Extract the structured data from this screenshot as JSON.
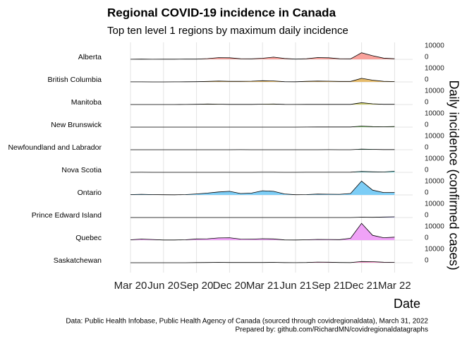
{
  "chart_data": {
    "type": "ridgeline",
    "title": "Regional COVID-19 incidence in Canada",
    "subtitle": "Top ten level 1 regions by maximum daily incidence",
    "x_label": "Date",
    "y_label": "Daily incidence (confirmed cases)",
    "caption": [
      "Data: Public Health Infobase, Public Health Agency of Canada (sourced through covidregionaldata), March 31, 2022",
      "Prepared by: github.com/RichardMN/covidregionaldatagraphs"
    ],
    "x": [
      "2020-03",
      "2020-04",
      "2020-05",
      "2020-06",
      "2020-07",
      "2020-08",
      "2020-09",
      "2020-10",
      "2020-11",
      "2020-12",
      "2021-01",
      "2021-02",
      "2021-03",
      "2021-04",
      "2021-05",
      "2021-06",
      "2021-07",
      "2021-08",
      "2021-09",
      "2021-10",
      "2021-11",
      "2021-12",
      "2022-01",
      "2022-02",
      "2022-03"
    ],
    "xlim": [
      "2020-03",
      "2022-04"
    ],
    "xticks": [
      {
        "value": "2020-03",
        "label": "Mar 20"
      },
      {
        "value": "2020-06",
        "label": "Jun 20"
      },
      {
        "value": "2020-09",
        "label": "Sep 20"
      },
      {
        "value": "2020-12",
        "label": "Dec 20"
      },
      {
        "value": "2021-03",
        "label": "Mar 21"
      },
      {
        "value": "2021-06",
        "label": "Jun 21"
      },
      {
        "value": "2021-09",
        "label": "Sep 21"
      },
      {
        "value": "2021-12",
        "label": "Dec 21"
      },
      {
        "value": "2022-03",
        "label": "Mar 22"
      }
    ],
    "ylim": [
      0,
      10000
    ],
    "yticks": [
      0,
      10000
    ],
    "grid": true,
    "series": [
      {
        "name": "Alberta",
        "color": "#f8a19b",
        "values": [
          50,
          150,
          50,
          100,
          100,
          150,
          200,
          600,
          1400,
          1300,
          500,
          400,
          900,
          1800,
          700,
          150,
          500,
          1500,
          1300,
          500,
          400,
          5500,
          3000,
          1000,
          500
        ]
      },
      {
        "name": "British Columbia",
        "color": "#e6bb6a",
        "values": [
          50,
          50,
          20,
          20,
          50,
          100,
          150,
          400,
          700,
          500,
          500,
          600,
          1000,
          800,
          200,
          100,
          500,
          700,
          600,
          400,
          400,
          3000,
          1500,
          500,
          300
        ]
      },
      {
        "name": "Manitoba",
        "color": "#c8c96a",
        "values": [
          5,
          10,
          5,
          5,
          10,
          50,
          200,
          400,
          300,
          100,
          100,
          100,
          300,
          400,
          100,
          50,
          100,
          100,
          100,
          100,
          100,
          1500,
          600,
          200,
          150
        ]
      },
      {
        "name": "New Brunswick",
        "color": "#8fd47a",
        "values": [
          5,
          5,
          5,
          5,
          5,
          5,
          10,
          10,
          20,
          20,
          20,
          10,
          20,
          20,
          10,
          20,
          50,
          100,
          100,
          100,
          100,
          800,
          400,
          300,
          500
        ]
      },
      {
        "name": "Newfoundland and Labrador",
        "color": "#6ad9ac",
        "values": [
          5,
          5,
          0,
          0,
          0,
          0,
          0,
          5,
          10,
          10,
          50,
          10,
          5,
          10,
          5,
          5,
          10,
          20,
          30,
          20,
          20,
          500,
          300,
          100,
          100
        ]
      },
      {
        "name": "Nova Scotia",
        "color": "#6ad9dc",
        "values": [
          10,
          50,
          5,
          5,
          5,
          5,
          5,
          20,
          20,
          5,
          10,
          20,
          80,
          50,
          5,
          5,
          30,
          50,
          50,
          50,
          100,
          700,
          400,
          300,
          900
        ]
      },
      {
        "name": "Ontario",
        "color": "#7ccdf6",
        "values": [
          300,
          500,
          300,
          150,
          100,
          300,
          800,
          1500,
          2500,
          3000,
          1200,
          1500,
          3500,
          3000,
          800,
          200,
          300,
          700,
          600,
          500,
          1200,
          11500,
          4000,
          2000,
          2000
        ]
      },
      {
        "name": "Prince Edward Island",
        "color": "#bcb8ff",
        "values": [
          2,
          2,
          0,
          0,
          0,
          0,
          0,
          2,
          5,
          2,
          2,
          2,
          5,
          2,
          2,
          2,
          2,
          5,
          5,
          10,
          10,
          300,
          200,
          400,
          600
        ]
      },
      {
        "name": "Quebec",
        "color": "#f0a2f7",
        "values": [
          300,
          900,
          500,
          100,
          100,
          300,
          1000,
          1100,
          1800,
          2000,
          900,
          800,
          1200,
          1000,
          200,
          100,
          300,
          600,
          500,
          400,
          1500,
          14000,
          4000,
          2000,
          2500
        ]
      },
      {
        "name": "Saskatchewan",
        "color": "#ff9fd3",
        "values": [
          10,
          20,
          10,
          10,
          10,
          20,
          100,
          200,
          300,
          200,
          150,
          150,
          200,
          300,
          100,
          50,
          200,
          500,
          400,
          150,
          100,
          1000,
          900,
          400,
          300
        ]
      }
    ]
  }
}
